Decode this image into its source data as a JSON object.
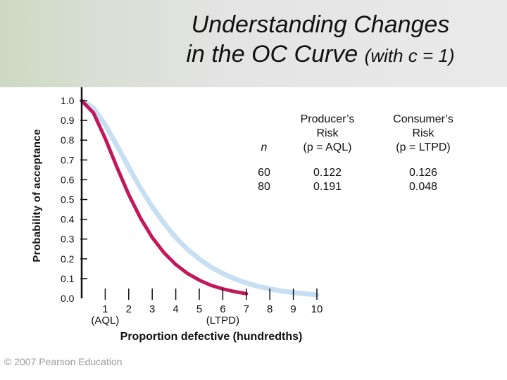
{
  "title": {
    "line1": "Understanding Changes",
    "line2_main": "in the OC Curve ",
    "line2_small": "(with c = 1)"
  },
  "copyright": "© 2007 Pearson Education",
  "colors": {
    "n60": "#c7dff2",
    "n80": "#c2185b",
    "axis": "#111111"
  },
  "chart_data": {
    "type": "line",
    "xlabel": "Proportion defective (hundredths)",
    "ylabel": "Probability of acceptance",
    "xlim": [
      0,
      10
    ],
    "ylim": [
      0,
      1.0
    ],
    "y_ticks": [
      "0.0",
      "0.1",
      "0.2",
      "0.3",
      "0.4",
      "0.5",
      "0.6",
      "0.7",
      "0.8",
      "0.9",
      "1.0"
    ],
    "x_ticks": [
      "1",
      "2",
      "3",
      "4",
      "5",
      "6",
      "7",
      "8",
      "9",
      "10"
    ],
    "x_tick_annotations": [
      {
        "x": 1,
        "text": "(AQL)"
      },
      {
        "x": 6,
        "text": "(LTPD)"
      }
    ],
    "series": [
      {
        "name": "60",
        "x": [
          0,
          0.5,
          1,
          1.5,
          2,
          2.5,
          3,
          3.5,
          4,
          4.5,
          5,
          5.5,
          6,
          6.5,
          7,
          7.5,
          8,
          8.5,
          9,
          9.5,
          10
        ],
        "y": [
          1.0,
          0.963,
          0.878,
          0.772,
          0.663,
          0.558,
          0.463,
          0.38,
          0.308,
          0.248,
          0.199,
          0.158,
          0.126,
          0.099,
          0.078,
          0.061,
          0.048,
          0.037,
          0.03,
          0.023,
          0.018
        ]
      },
      {
        "name": "80",
        "x": [
          0,
          0.5,
          1,
          1.5,
          2,
          2.5,
          3,
          3.5,
          4,
          4.5,
          5,
          5.5,
          6,
          6.5,
          7
        ],
        "y": [
          1.0,
          0.938,
          0.809,
          0.663,
          0.525,
          0.406,
          0.308,
          0.231,
          0.171,
          0.126,
          0.092,
          0.066,
          0.048,
          0.034,
          0.024
        ]
      }
    ],
    "table": {
      "headers": [
        "n",
        "Producer’s\nRisk\n(p = AQL)",
        "Consumer’s\nRisk\n(p = LTPD)"
      ],
      "rows": [
        [
          "60",
          "0.122",
          "0.126"
        ],
        [
          "80",
          "0.191",
          "0.048"
        ]
      ]
    },
    "grid": false,
    "legend": "table"
  }
}
